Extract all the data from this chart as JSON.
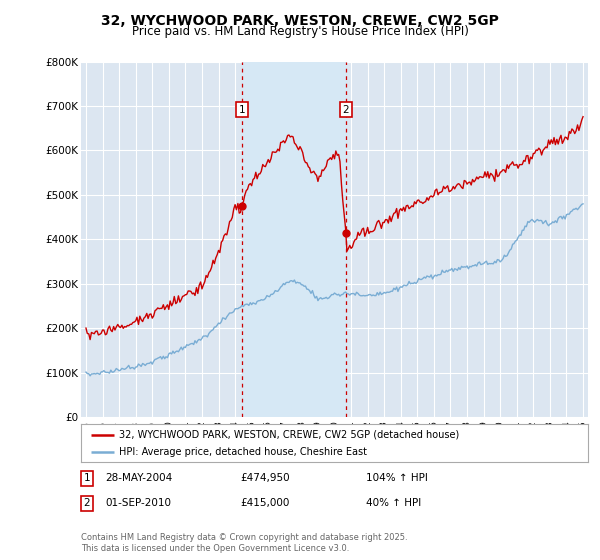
{
  "title": "32, WYCHWOOD PARK, WESTON, CREWE, CW2 5GP",
  "subtitle": "Price paid vs. HM Land Registry's House Price Index (HPI)",
  "background_color": "#ffffff",
  "plot_bg_color": "#dce6f1",
  "grid_color": "#ffffff",
  "sale1_date": "28-MAY-2004",
  "sale1_price": 474950,
  "sale1_label": "104% ↑ HPI",
  "sale2_date": "01-SEP-2010",
  "sale2_price": 415000,
  "sale2_label": "40% ↑ HPI",
  "red_line_color": "#cc0000",
  "blue_line_color": "#7aadd4",
  "vline_color": "#cc0000",
  "span_color": "#d6e8f5",
  "legend_label_red": "32, WYCHWOOD PARK, WESTON, CREWE, CW2 5GP (detached house)",
  "legend_label_blue": "HPI: Average price, detached house, Cheshire East",
  "footer": "Contains HM Land Registry data © Crown copyright and database right 2025.\nThis data is licensed under the Open Government Licence v3.0.",
  "ylim": [
    0,
    800000
  ],
  "yticks": [
    0,
    100000,
    200000,
    300000,
    400000,
    500000,
    600000,
    700000,
    800000
  ],
  "xlim": [
    1994.7,
    2025.3
  ],
  "sale1_x": 2004.41,
  "sale2_x": 2010.67,
  "hpi_x": [
    1995,
    1995.08,
    1995.17,
    1995.25,
    1995.33,
    1995.42,
    1995.5,
    1995.58,
    1995.67,
    1995.75,
    1995.83,
    1995.92,
    1996,
    1996.08,
    1996.17,
    1996.25,
    1996.33,
    1996.42,
    1996.5,
    1996.58,
    1996.67,
    1996.75,
    1996.83,
    1996.92,
    1997,
    1997.08,
    1997.17,
    1997.25,
    1997.33,
    1997.42,
    1997.5,
    1997.58,
    1997.67,
    1997.75,
    1997.83,
    1997.92,
    1998,
    1998.08,
    1998.17,
    1998.25,
    1998.33,
    1998.42,
    1998.5,
    1998.58,
    1998.67,
    1998.75,
    1998.83,
    1998.92,
    1999,
    1999.08,
    1999.17,
    1999.25,
    1999.33,
    1999.42,
    1999.5,
    1999.58,
    1999.67,
    1999.75,
    1999.83,
    1999.92,
    2000,
    2000.08,
    2000.17,
    2000.25,
    2000.33,
    2000.42,
    2000.5,
    2000.58,
    2000.67,
    2000.75,
    2000.83,
    2000.92,
    2001,
    2001.08,
    2001.17,
    2001.25,
    2001.33,
    2001.42,
    2001.5,
    2001.58,
    2001.67,
    2001.75,
    2001.83,
    2001.92,
    2002,
    2002.08,
    2002.17,
    2002.25,
    2002.33,
    2002.42,
    2002.5,
    2002.58,
    2002.67,
    2002.75,
    2002.83,
    2002.92,
    2003,
    2003.08,
    2003.17,
    2003.25,
    2003.33,
    2003.42,
    2003.5,
    2003.58,
    2003.67,
    2003.75,
    2003.83,
    2003.92,
    2004,
    2004.08,
    2004.17,
    2004.25,
    2004.33,
    2004.41,
    2004.5,
    2004.58,
    2004.67,
    2004.75,
    2004.83,
    2004.92,
    2005,
    2005.08,
    2005.17,
    2005.25,
    2005.33,
    2005.42,
    2005.5,
    2005.58,
    2005.67,
    2005.75,
    2005.83,
    2005.92,
    2006,
    2006.08,
    2006.17,
    2006.25,
    2006.33,
    2006.42,
    2006.5,
    2006.58,
    2006.67,
    2006.75,
    2006.83,
    2006.92,
    2007,
    2007.08,
    2007.17,
    2007.25,
    2007.33,
    2007.42,
    2007.5,
    2007.58,
    2007.67,
    2007.75,
    2007.83,
    2007.92,
    2008,
    2008.08,
    2008.17,
    2008.25,
    2008.33,
    2008.42,
    2008.5,
    2008.58,
    2008.67,
    2008.75,
    2008.83,
    2008.92,
    2009,
    2009.08,
    2009.17,
    2009.25,
    2009.33,
    2009.42,
    2009.5,
    2009.58,
    2009.67,
    2009.75,
    2009.83,
    2009.92,
    2010,
    2010.08,
    2010.17,
    2010.25,
    2010.33,
    2010.42,
    2010.5,
    2010.58,
    2010.67,
    2010.75,
    2010.83,
    2010.92,
    2011,
    2011.08,
    2011.17,
    2011.25,
    2011.33,
    2011.42,
    2011.5,
    2011.58,
    2011.67,
    2011.75,
    2011.83,
    2011.92,
    2012,
    2012.08,
    2012.17,
    2012.25,
    2012.33,
    2012.42,
    2012.5,
    2012.58,
    2012.67,
    2012.75,
    2012.83,
    2012.92,
    2013,
    2013.08,
    2013.17,
    2013.25,
    2013.33,
    2013.42,
    2013.5,
    2013.58,
    2013.67,
    2013.75,
    2013.83,
    2013.92,
    2014,
    2014.08,
    2014.17,
    2014.25,
    2014.33,
    2014.42,
    2014.5,
    2014.58,
    2014.67,
    2014.75,
    2014.83,
    2014.92,
    2015,
    2015.08,
    2015.17,
    2015.25,
    2015.33,
    2015.42,
    2015.5,
    2015.58,
    2015.67,
    2015.75,
    2015.83,
    2015.92,
    2016,
    2016.08,
    2016.17,
    2016.25,
    2016.33,
    2016.42,
    2016.5,
    2016.58,
    2016.67,
    2016.75,
    2016.83,
    2016.92,
    2017,
    2017.08,
    2017.17,
    2017.25,
    2017.33,
    2017.42,
    2017.5,
    2017.58,
    2017.67,
    2017.75,
    2017.83,
    2017.92,
    2018,
    2018.08,
    2018.17,
    2018.25,
    2018.33,
    2018.42,
    2018.5,
    2018.58,
    2018.67,
    2018.75,
    2018.83,
    2018.92,
    2019,
    2019.08,
    2019.17,
    2019.25,
    2019.33,
    2019.42,
    2019.5,
    2019.58,
    2019.67,
    2019.75,
    2019.83,
    2019.92,
    2020,
    2020.08,
    2020.17,
    2020.25,
    2020.33,
    2020.42,
    2020.5,
    2020.58,
    2020.67,
    2020.75,
    2020.83,
    2020.92,
    2021,
    2021.08,
    2021.17,
    2021.25,
    2021.33,
    2021.42,
    2021.5,
    2021.58,
    2021.67,
    2021.75,
    2021.83,
    2021.92,
    2022,
    2022.08,
    2022.17,
    2022.25,
    2022.33,
    2022.42,
    2022.5,
    2022.58,
    2022.67,
    2022.75,
    2022.83,
    2022.92,
    2023,
    2023.08,
    2023.17,
    2023.25,
    2023.33,
    2023.42,
    2023.5,
    2023.58,
    2023.67,
    2023.75,
    2023.83,
    2023.92,
    2024,
    2024.08,
    2024.17,
    2024.25,
    2024.33,
    2024.42,
    2024.5,
    2024.58,
    2024.67,
    2024.75,
    2024.83,
    2024.92,
    2025
  ],
  "hpi_waypoints_x": [
    1995,
    1996,
    1997,
    1998,
    1999,
    2000,
    2001,
    2002,
    2003,
    2004,
    2004.41,
    2005,
    2006,
    2007,
    2007.5,
    2008,
    2008.5,
    2009,
    2009.5,
    2010,
    2010.67,
    2011,
    2012,
    2013,
    2014,
    2015,
    2016,
    2017,
    2018,
    2019,
    2020,
    2020.5,
    2021,
    2021.5,
    2022,
    2023,
    2024,
    2025
  ],
  "hpi_waypoints_y": [
    97000,
    100000,
    107000,
    115000,
    125000,
    140000,
    157000,
    177000,
    210000,
    242000,
    250000,
    255000,
    270000,
    300000,
    307000,
    300000,
    285000,
    265000,
    270000,
    275000,
    280000,
    278000,
    272000,
    278000,
    292000,
    305000,
    318000,
    330000,
    338000,
    345000,
    352000,
    370000,
    400000,
    430000,
    445000,
    435000,
    455000,
    480000
  ],
  "red_waypoints_x": [
    1995,
    1996,
    1997,
    1998,
    1999,
    2000,
    2001,
    2002,
    2003,
    2003.5,
    2004,
    2004.41,
    2004.7,
    2005,
    2005.5,
    2006,
    2006.5,
    2007,
    2007.3,
    2007.5,
    2007.8,
    2008,
    2008.3,
    2008.7,
    2009,
    2009.3,
    2009.6,
    2009.9,
    2010,
    2010.3,
    2010.67,
    2010.75,
    2011,
    2011.5,
    2012,
    2012.5,
    2013,
    2013.5,
    2014,
    2014.5,
    2015,
    2015.5,
    2016,
    2016.5,
    2017,
    2017.3,
    2017.6,
    2018,
    2018.5,
    2019,
    2019.5,
    2020,
    2020.5,
    2021,
    2021.3,
    2021.7,
    2022,
    2022.3,
    2022.7,
    2023,
    2023.3,
    2023.7,
    2024,
    2024.3,
    2024.7,
    2025
  ],
  "red_waypoints_y": [
    190000,
    192000,
    200000,
    215000,
    233000,
    252000,
    272000,
    295000,
    370000,
    420000,
    465000,
    474950,
    510000,
    530000,
    550000,
    575000,
    600000,
    625000,
    635000,
    625000,
    610000,
    600000,
    575000,
    545000,
    530000,
    555000,
    575000,
    590000,
    590000,
    590000,
    415000,
    380000,
    390000,
    410000,
    420000,
    430000,
    440000,
    455000,
    465000,
    475000,
    480000,
    490000,
    500000,
    510000,
    510000,
    515000,
    520000,
    530000,
    535000,
    540000,
    545000,
    550000,
    565000,
    570000,
    575000,
    580000,
    590000,
    600000,
    610000,
    615000,
    620000,
    625000,
    630000,
    640000,
    650000,
    670000
  ]
}
